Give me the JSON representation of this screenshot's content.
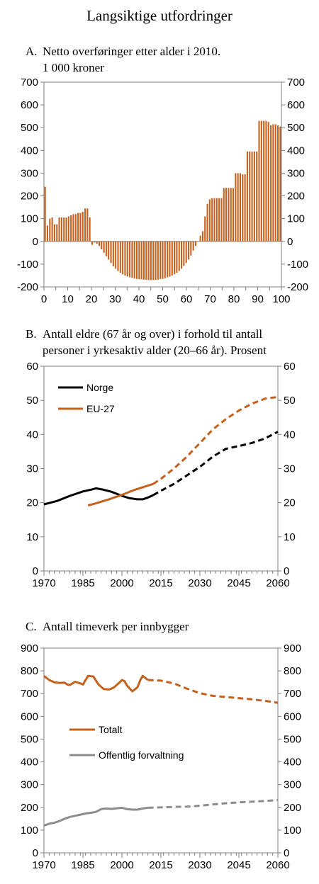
{
  "page": {
    "title": "Langsiktige utfordringer"
  },
  "colors": {
    "orange": "#C5601C",
    "black": "#000000",
    "grey": "#8C8C8C"
  },
  "chart_data": [
    {
      "id": "A",
      "type": "bar",
      "title_letter": "A.",
      "title_lines": [
        "Netto overføringer etter alder i 2010.",
        "1 000 kroner"
      ],
      "x_ticks": [
        0,
        10,
        20,
        30,
        40,
        50,
        60,
        70,
        80,
        90,
        100
      ],
      "xlim": [
        0,
        100
      ],
      "y_ticks": [
        -200,
        -100,
        0,
        100,
        200,
        300,
        400,
        500,
        600,
        700
      ],
      "ylim": [
        -200,
        700
      ],
      "grid": false,
      "series": [
        {
          "color": "#C5601C",
          "x": [
            0,
            1,
            2,
            3,
            4,
            5,
            6,
            7,
            8,
            9,
            10,
            11,
            12,
            13,
            14,
            15,
            16,
            17,
            18,
            19,
            20,
            21,
            22,
            23,
            24,
            25,
            26,
            27,
            28,
            29,
            30,
            31,
            32,
            33,
            34,
            35,
            36,
            37,
            38,
            39,
            40,
            41,
            42,
            43,
            44,
            45,
            46,
            47,
            48,
            49,
            50,
            51,
            52,
            53,
            54,
            55,
            56,
            57,
            58,
            59,
            60,
            61,
            62,
            63,
            64,
            65,
            66,
            67,
            68,
            69,
            70,
            71,
            72,
            73,
            74,
            75,
            76,
            77,
            78,
            79,
            80,
            81,
            82,
            83,
            84,
            85,
            86,
            87,
            88,
            89,
            90,
            91,
            92,
            93,
            94,
            95,
            96,
            97,
            98,
            99,
            100
          ],
          "values": [
            240,
            70,
            100,
            105,
            75,
            75,
            105,
            105,
            105,
            105,
            110,
            115,
            120,
            120,
            125,
            125,
            130,
            145,
            145,
            105,
            -15,
            -5,
            -10,
            -20,
            -35,
            -50,
            -65,
            -80,
            -95,
            -110,
            -120,
            -130,
            -138,
            -145,
            -150,
            -155,
            -158,
            -160,
            -163,
            -165,
            -166,
            -167,
            -168,
            -169,
            -170,
            -170,
            -170,
            -169,
            -168,
            -166,
            -165,
            -162,
            -158,
            -155,
            -150,
            -145,
            -138,
            -130,
            -120,
            -108,
            -95,
            -80,
            -62,
            -40,
            -20,
            0,
            25,
            45,
            110,
            165,
            185,
            190,
            190,
            190,
            190,
            190,
            235,
            235,
            235,
            235,
            235,
            300,
            300,
            300,
            295,
            295,
            395,
            395,
            395,
            395,
            395,
            530,
            530,
            530,
            530,
            525,
            510,
            515,
            515,
            510,
            505
          ]
        }
      ]
    },
    {
      "id": "B",
      "type": "line",
      "title_letter": "B.",
      "title_lines": [
        "Antall eldre (67 år og over) i forhold til antall",
        "personer i yrkesaktiv alder (20–66 år). Prosent"
      ],
      "x_ticks": [
        1970,
        1985,
        2000,
        2015,
        2030,
        2045,
        2060
      ],
      "xlim": [
        1970,
        2060
      ],
      "y_ticks": [
        0,
        10,
        20,
        30,
        40,
        50,
        60
      ],
      "ylim": [
        0,
        60
      ],
      "grid": false,
      "legend_position": "top-left",
      "series": [
        {
          "name": "Norge",
          "color": "#000000",
          "x": [
            1970,
            1975,
            1980,
            1985,
            1988,
            1990,
            1993,
            1996,
            2000,
            2003,
            2006,
            2008,
            2010,
            2012,
            2015,
            2020,
            2025,
            2030,
            2035,
            2040,
            2045,
            2050,
            2055,
            2060
          ],
          "values": [
            19.5,
            20.5,
            22.0,
            23.3,
            23.8,
            24.2,
            23.8,
            23.2,
            22.0,
            21.3,
            21.0,
            21.0,
            21.5,
            22.2,
            23.5,
            25.5,
            28.0,
            30.5,
            33.5,
            35.8,
            36.6,
            37.5,
            38.8,
            40.8
          ],
          "forecast_from": 2012
        },
        {
          "name": "EU-27",
          "color": "#C5601C",
          "x": [
            1987,
            1990,
            1995,
            2000,
            2005,
            2010,
            2012,
            2015,
            2020,
            2025,
            2030,
            2035,
            2040,
            2045,
            2050,
            2055,
            2060
          ],
          "values": [
            19.2,
            19.8,
            21.0,
            22.3,
            23.8,
            25.0,
            25.5,
            27.0,
            30.0,
            33.5,
            37.5,
            41.5,
            44.5,
            47.0,
            49.0,
            50.5,
            51.0
          ],
          "forecast_from": 2012
        }
      ]
    },
    {
      "id": "C",
      "type": "line",
      "title_letter": "C.",
      "title_lines": [
        "Antall timeverk per innbygger"
      ],
      "x_ticks": [
        1970,
        1985,
        2000,
        2015,
        2030,
        2045,
        2060
      ],
      "xlim": [
        1970,
        2060
      ],
      "y_ticks": [
        0,
        100,
        200,
        300,
        400,
        500,
        600,
        700,
        800,
        900
      ],
      "ylim": [
        0,
        900
      ],
      "grid": false,
      "legend_position": "center-left",
      "series": [
        {
          "name": "Totalt",
          "color": "#C5601C",
          "x": [
            1970,
            1972,
            1974,
            1976,
            1978,
            1979,
            1980,
            1982,
            1984,
            1985,
            1986,
            1987,
            1989,
            1991,
            1993,
            1995,
            1996,
            1997,
            1999,
            2000,
            2001,
            2002,
            2004,
            2006,
            2007,
            2008,
            2010,
            2015,
            2020,
            2025,
            2030,
            2035,
            2040,
            2045,
            2050,
            2055,
            2060
          ],
          "values": [
            778,
            760,
            750,
            747,
            748,
            740,
            738,
            752,
            745,
            740,
            760,
            778,
            775,
            740,
            720,
            718,
            722,
            728,
            748,
            760,
            755,
            735,
            710,
            728,
            758,
            778,
            760,
            757,
            745,
            722,
            702,
            690,
            685,
            680,
            675,
            668,
            660
          ],
          "forecast_from": 2010
        },
        {
          "name": "Offentlig forvaltning",
          "color": "#8C8C8C",
          "x": [
            1970,
            1972,
            1974,
            1976,
            1978,
            1980,
            1982,
            1984,
            1986,
            1988,
            1990,
            1992,
            1994,
            1996,
            1998,
            2000,
            2002,
            2004,
            2006,
            2008,
            2010,
            2015,
            2020,
            2025,
            2030,
            2035,
            2040,
            2045,
            2050,
            2055,
            2060
          ],
          "values": [
            120,
            128,
            132,
            140,
            150,
            158,
            163,
            168,
            173,
            176,
            180,
            192,
            195,
            193,
            196,
            198,
            192,
            190,
            190,
            195,
            198,
            200,
            202,
            203,
            207,
            213,
            218,
            222,
            225,
            228,
            232
          ],
          "forecast_from": 2010
        }
      ]
    }
  ]
}
